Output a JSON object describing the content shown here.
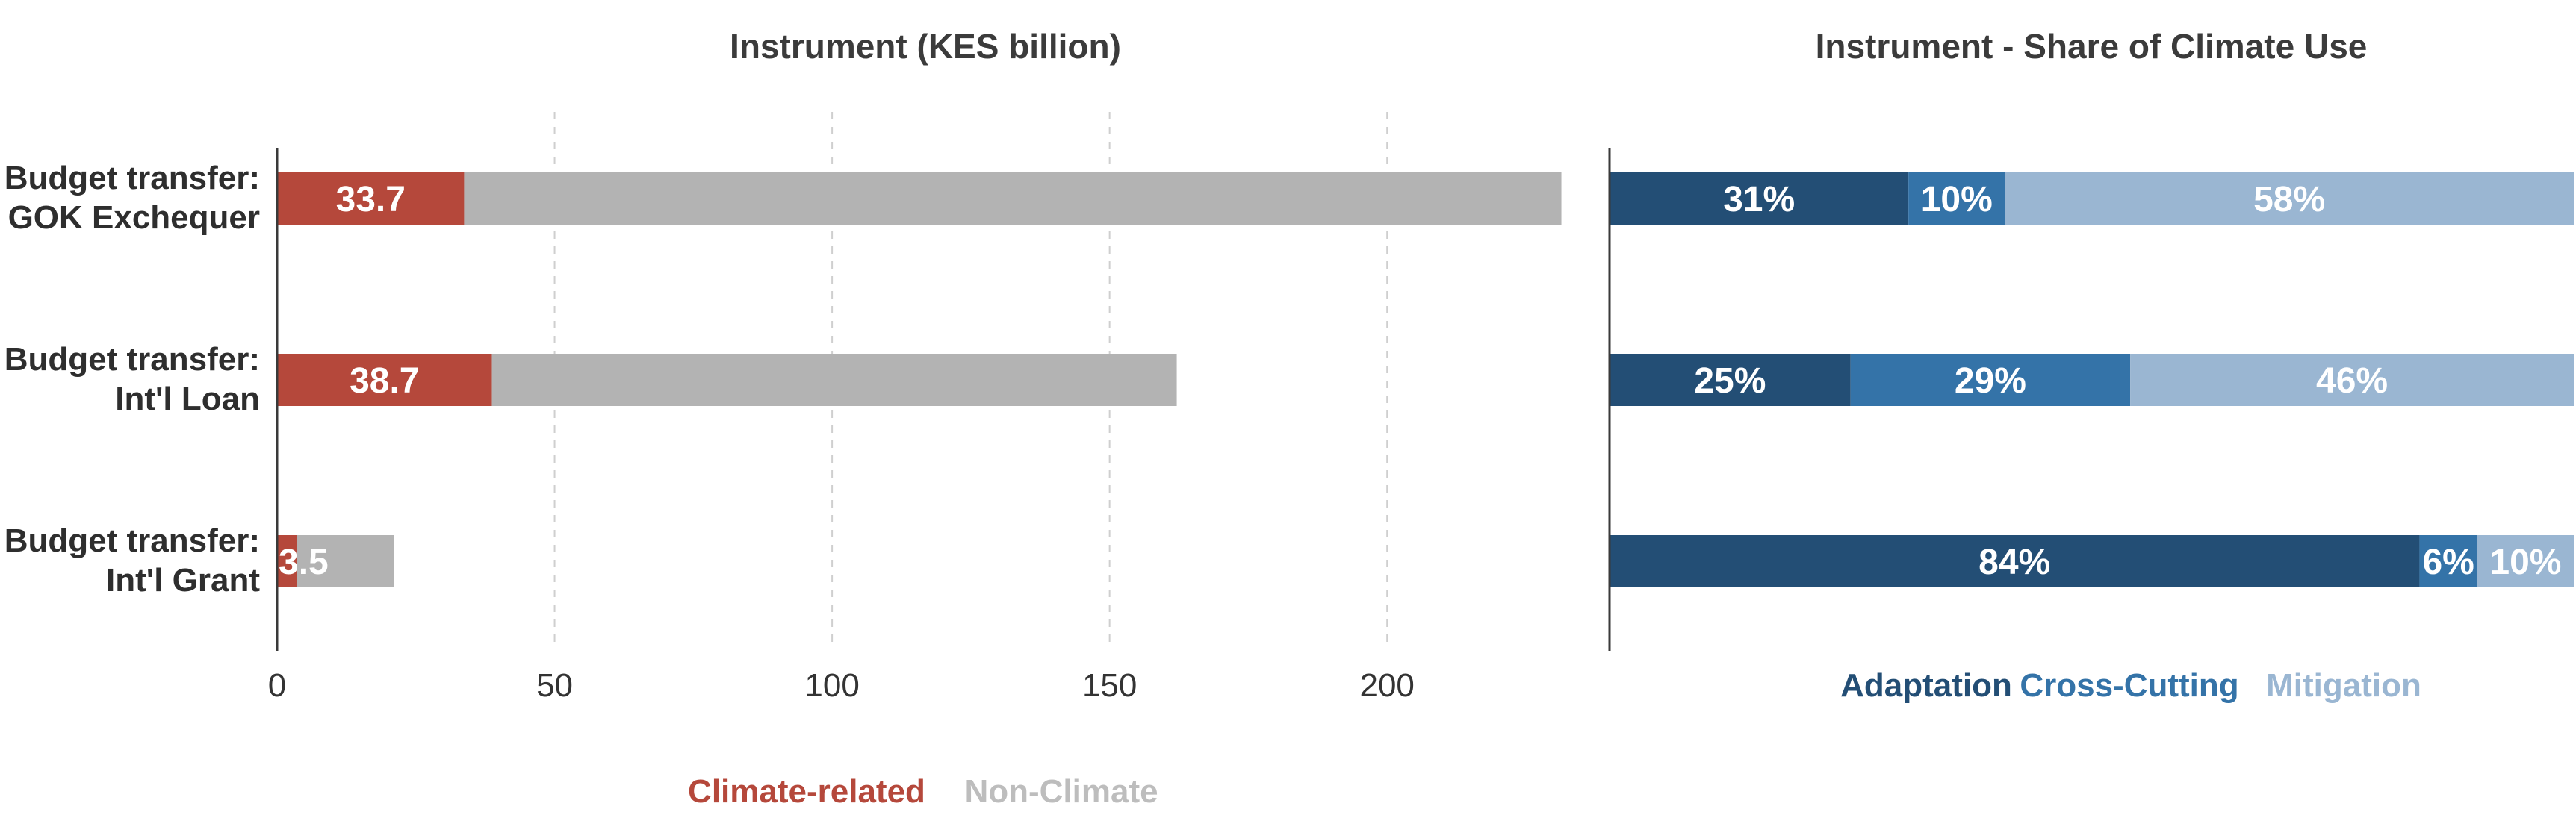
{
  "chart_data": [
    {
      "type": "bar",
      "orientation": "horizontal",
      "stacked": true,
      "title": "Instrument (KES billion)",
      "categories": [
        "Budget transfer:\nGOK Exchequer",
        "Budget transfer:\nInt'l Loan",
        "Budget transfer:\nInt'l Grant"
      ],
      "series": [
        {
          "name": "Climate-related",
          "values": [
            33.7,
            38.7,
            3.5
          ],
          "labels": [
            "33.7",
            "38.7",
            "3.5"
          ],
          "color": "#b5483b"
        },
        {
          "name": "Non-Climate",
          "values": [
            197.7,
            123.4,
            17.5
          ],
          "color": "#b3b3b3"
        }
      ],
      "xlim": [
        0,
        232
      ],
      "xticks": [
        0,
        50,
        100,
        150,
        200
      ],
      "grid": "vertical dashed",
      "legend_position": "bottom-center"
    },
    {
      "type": "bar",
      "orientation": "horizontal",
      "stacked": true,
      "percent": true,
      "title": "Instrument - Share of Climate Use",
      "categories": [
        "Budget transfer:\nGOK Exchequer",
        "Budget transfer:\nInt'l Loan",
        "Budget transfer:\nInt'l Grant"
      ],
      "series": [
        {
          "name": "Adaptation",
          "values": [
            31,
            25,
            84
          ],
          "labels": [
            "31%",
            "25%",
            "84%"
          ],
          "color": "#234e75"
        },
        {
          "name": "Cross-Cutting",
          "values": [
            10,
            29,
            6
          ],
          "labels": [
            "10%",
            "29%",
            "6%"
          ],
          "color": "#3473a8"
        },
        {
          "name": "Mitigation",
          "values": [
            58,
            46,
            10
          ],
          "labels": [
            "58%",
            "46%",
            "10%"
          ],
          "color": "#9ab6d2"
        }
      ],
      "xlim": [
        0,
        100
      ],
      "legend_position": "bottom-center"
    }
  ]
}
